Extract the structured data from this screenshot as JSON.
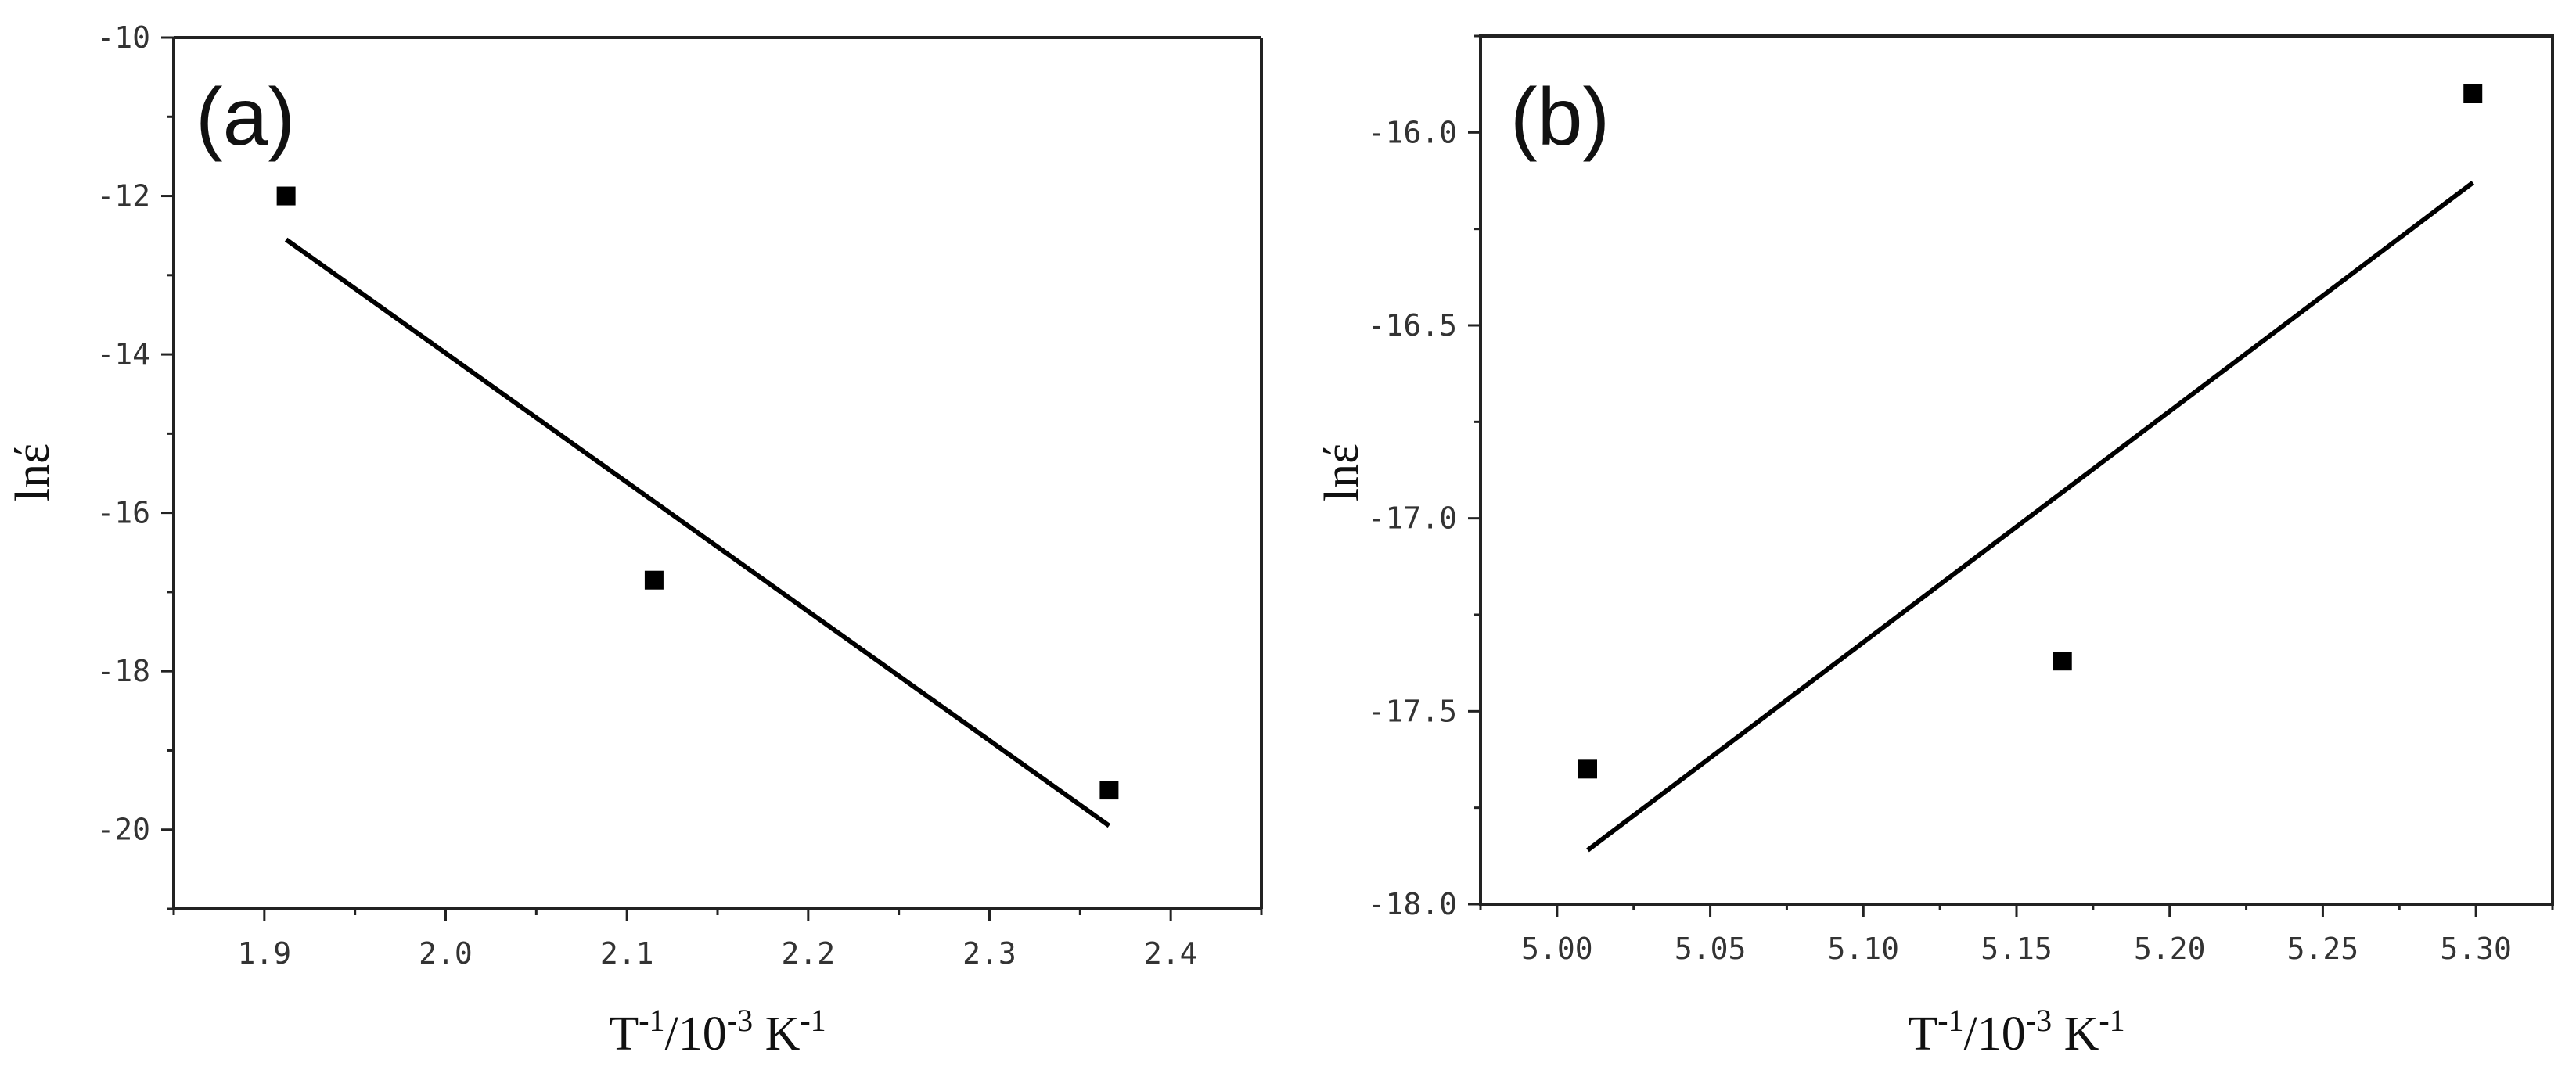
{
  "chart_data": [
    {
      "type": "scatter",
      "panel_label": "(a)",
      "xlabel": "T-1/10-3 K-1",
      "xlabel_parts": [
        "T",
        "-1",
        "/10",
        "-3",
        " K",
        "-1"
      ],
      "ylabel": "lnέ",
      "xlim": [
        1.85,
        2.45
      ],
      "ylim": [
        -21,
        -10
      ],
      "x_ticks": [
        1.9,
        2.0,
        2.1,
        2.2,
        2.3,
        2.4
      ],
      "x_tick_labels": [
        "1.9",
        "2.0",
        "2.1",
        "2.2",
        "2.3",
        "2.4"
      ],
      "y_ticks": [
        -20,
        -18,
        -16,
        -14,
        -12,
        -10
      ],
      "y_tick_labels": [
        "-20",
        "-18",
        "-16",
        "-14",
        "-12",
        "-10"
      ],
      "series": [
        {
          "x": [
            1.912,
            2.115,
            2.366
          ],
          "y": [
            -12.0,
            -16.85,
            -19.5
          ]
        }
      ],
      "fit_line": {
        "x": [
          1.912,
          2.366
        ],
        "y": [
          -12.55,
          -19.95
        ]
      }
    },
    {
      "type": "scatter",
      "panel_label": "(b)",
      "xlabel": "T-1/10-3 K-1",
      "xlabel_parts": [
        "T",
        "-1",
        "/10",
        "-3",
        " K",
        "-1"
      ],
      "ylabel": "lnέ",
      "xlim": [
        4.975,
        5.325
      ],
      "ylim": [
        -18.0,
        -15.75
      ],
      "x_ticks": [
        5.0,
        5.05,
        5.1,
        5.15,
        5.2,
        5.25,
        5.3
      ],
      "x_tick_labels": [
        "5.00",
        "5.05",
        "5.10",
        "5.15",
        "5.20",
        "5.25",
        "5.30"
      ],
      "y_ticks": [
        -18.0,
        -17.5,
        -17.0,
        -16.5,
        -16.0
      ],
      "y_tick_labels": [
        "-18.0",
        "-17.5",
        "-17.0",
        "-16.5",
        "-16.0"
      ],
      "series": [
        {
          "x": [
            5.01,
            5.165,
            5.299
          ],
          "y": [
            -17.65,
            -17.37,
            -15.9
          ]
        }
      ],
      "fit_line": {
        "x": [
          5.01,
          5.299
        ],
        "y": [
          -17.86,
          -16.13
        ]
      }
    }
  ]
}
